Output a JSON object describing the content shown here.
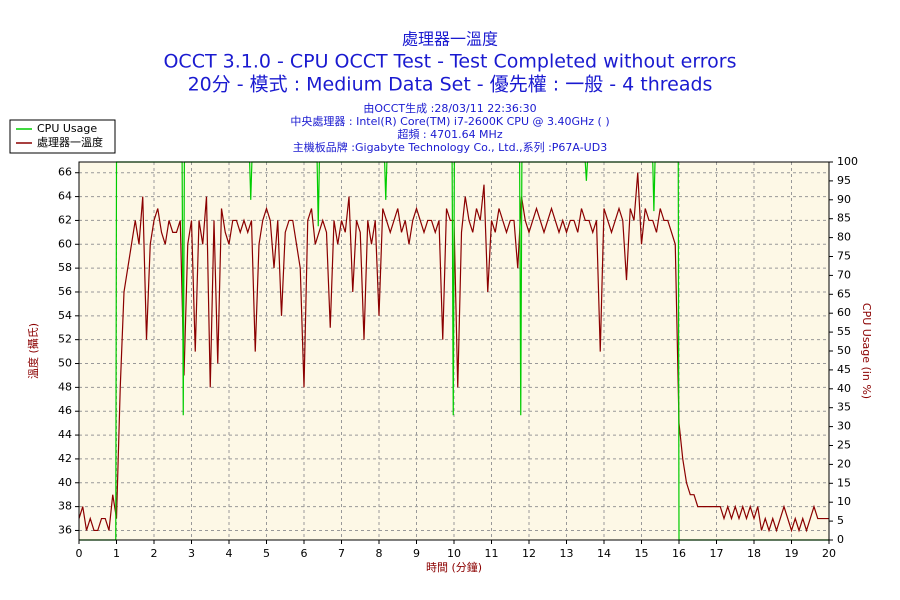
{
  "chart_data": {
    "type": "line",
    "title": "處理器一溫度",
    "subtitle": [
      "OCCT 3.1.0 - CPU OCCT Test - Test Completed without errors",
      "20分 - 模式 : Medium Data Set - 優先權 : 一般 - 4 threads"
    ],
    "info": [
      "由OCCT生成 :28/03/11 22:36:30",
      "中央處理器 : Intel(R) Core(TM) i7-2600K CPU @ 3.40GHz (  )",
      "超頻 : 4701.64 MHz",
      "主機板品牌 :Gigabyte Technology Co., Ltd.,系列 :P67A-UD3"
    ],
    "xlabel": "時間 (分鐘)",
    "ylabel": "溫度 (攝氏)",
    "y2label": "CPU Usage (in %)",
    "xlim": [
      0,
      20
    ],
    "xticks": [
      0,
      1,
      2,
      3,
      4,
      5,
      6,
      7,
      8,
      9,
      10,
      11,
      12,
      13,
      14,
      15,
      16,
      17,
      18,
      19,
      20
    ],
    "ylim": [
      35.2,
      66.9
    ],
    "yticks": [
      36,
      38,
      40,
      42,
      44,
      46,
      48,
      50,
      52,
      54,
      56,
      58,
      60,
      62,
      64,
      66
    ],
    "y2lim": [
      0,
      100
    ],
    "y2ticks": [
      0,
      5,
      10,
      15,
      20,
      25,
      30,
      35,
      40,
      45,
      50,
      55,
      60,
      65,
      70,
      75,
      80,
      85,
      90,
      95,
      100
    ],
    "grid": true,
    "legend": "upper left",
    "series": [
      {
        "name": "CPU Usage",
        "color": "#00cc00",
        "axis": "y2",
        "x": [
          0,
          0.98,
          1.0,
          2.75,
          2.78,
          2.81,
          4.55,
          4.58,
          4.61,
          6.35,
          6.38,
          6.41,
          8.15,
          8.18,
          8.21,
          9.95,
          9.98,
          10.01,
          11.75,
          11.78,
          11.81,
          13.5,
          13.53,
          13.56,
          15.3,
          15.33,
          15.36,
          15.98,
          16.0,
          20
        ],
        "values": [
          0,
          0,
          100,
          100,
          33,
          100,
          100,
          90,
          100,
          100,
          83,
          100,
          100,
          90,
          100,
          100,
          33,
          100,
          100,
          33,
          100,
          100,
          95,
          100,
          100,
          87,
          100,
          100,
          0,
          0
        ]
      },
      {
        "name": "處理器一溫度",
        "color": "#8b0000",
        "axis": "y",
        "x": [
          0,
          0.1,
          0.2,
          0.3,
          0.4,
          0.5,
          0.6,
          0.7,
          0.8,
          0.9,
          1,
          1.1,
          1.2,
          1.3,
          1.4,
          1.5,
          1.6,
          1.7,
          1.8,
          1.9,
          2,
          2.1,
          2.2,
          2.3,
          2.4,
          2.5,
          2.6,
          2.7,
          2.8,
          2.9,
          3,
          3.1,
          3.2,
          3.3,
          3.4,
          3.5,
          3.6,
          3.7,
          3.8,
          3.9,
          4,
          4.1,
          4.2,
          4.3,
          4.4,
          4.5,
          4.6,
          4.7,
          4.8,
          4.9,
          5,
          5.1,
          5.2,
          5.3,
          5.4,
          5.5,
          5.6,
          5.7,
          5.8,
          5.9,
          6,
          6.1,
          6.2,
          6.3,
          6.4,
          6.5,
          6.6,
          6.7,
          6.8,
          6.9,
          7,
          7.1,
          7.2,
          7.3,
          7.4,
          7.5,
          7.6,
          7.7,
          7.8,
          7.9,
          8,
          8.1,
          8.2,
          8.3,
          8.4,
          8.5,
          8.6,
          8.7,
          8.8,
          8.9,
          9,
          9.1,
          9.2,
          9.3,
          9.4,
          9.5,
          9.6,
          9.7,
          9.8,
          9.9,
          10,
          10.1,
          10.2,
          10.3,
          10.4,
          10.5,
          10.6,
          10.7,
          10.8,
          10.9,
          11,
          11.1,
          11.2,
          11.3,
          11.4,
          11.5,
          11.6,
          11.7,
          11.8,
          11.9,
          12,
          12.1,
          12.2,
          12.3,
          12.4,
          12.5,
          12.6,
          12.7,
          12.8,
          12.9,
          13,
          13.1,
          13.2,
          13.3,
          13.4,
          13.5,
          13.6,
          13.7,
          13.8,
          13.9,
          14,
          14.1,
          14.2,
          14.3,
          14.4,
          14.5,
          14.6,
          14.7,
          14.8,
          14.9,
          15,
          15.1,
          15.2,
          15.3,
          15.4,
          15.5,
          15.6,
          15.7,
          15.8,
          15.9,
          16,
          16.1,
          16.2,
          16.3,
          16.4,
          16.5,
          16.6,
          16.7,
          16.8,
          16.9,
          17,
          17.1,
          17.2,
          17.3,
          17.4,
          17.5,
          17.6,
          17.7,
          17.8,
          17.9,
          18,
          18.1,
          18.2,
          18.3,
          18.4,
          18.5,
          18.6,
          18.7,
          18.8,
          18.9,
          19,
          19.1,
          19.2,
          19.3,
          19.4,
          19.5,
          19.6,
          19.7,
          19.8,
          19.9,
          20
        ],
        "values": [
          37,
          38,
          36,
          37,
          36,
          36,
          37,
          37,
          36,
          39,
          37,
          48,
          56,
          58,
          60,
          62,
          60,
          64,
          52,
          60,
          62,
          63,
          61,
          60,
          62,
          61,
          61,
          62,
          49,
          60,
          62,
          51,
          62,
          60,
          64,
          48,
          62,
          50,
          63,
          61,
          60,
          62,
          62,
          61,
          62,
          61,
          62,
          51,
          60,
          62,
          63,
          62,
          58,
          62,
          54,
          61,
          62,
          62,
          60,
          58,
          48,
          62,
          63,
          60,
          61,
          62,
          61,
          53,
          62,
          60,
          62,
          61,
          64,
          56,
          62,
          61,
          52,
          62,
          60,
          62,
          54,
          63,
          62,
          61,
          62,
          63,
          61,
          62,
          60,
          62,
          63,
          62,
          61,
          62,
          62,
          61,
          62,
          52,
          63,
          62,
          62,
          48,
          61,
          64,
          62,
          61,
          63,
          62,
          65,
          56,
          62,
          61,
          63,
          62,
          61,
          62,
          62,
          58,
          64,
          62,
          61,
          62,
          63,
          62,
          61,
          62,
          63,
          62,
          61,
          62,
          61,
          62,
          62,
          61,
          63,
          62,
          62,
          61,
          62,
          51,
          63,
          62,
          61,
          62,
          63,
          62,
          57,
          63,
          62,
          66,
          60,
          63,
          62,
          62,
          61,
          63,
          62,
          62,
          61,
          60,
          45,
          42,
          40,
          39,
          39,
          38,
          38,
          38,
          38,
          38,
          38,
          38,
          37,
          38,
          37,
          38,
          37,
          38,
          37,
          38,
          37,
          38,
          36,
          37,
          36,
          37,
          36,
          37,
          38,
          37,
          36,
          37,
          36,
          37,
          36,
          37,
          38,
          37,
          37,
          37,
          37
        ]
      }
    ]
  }
}
